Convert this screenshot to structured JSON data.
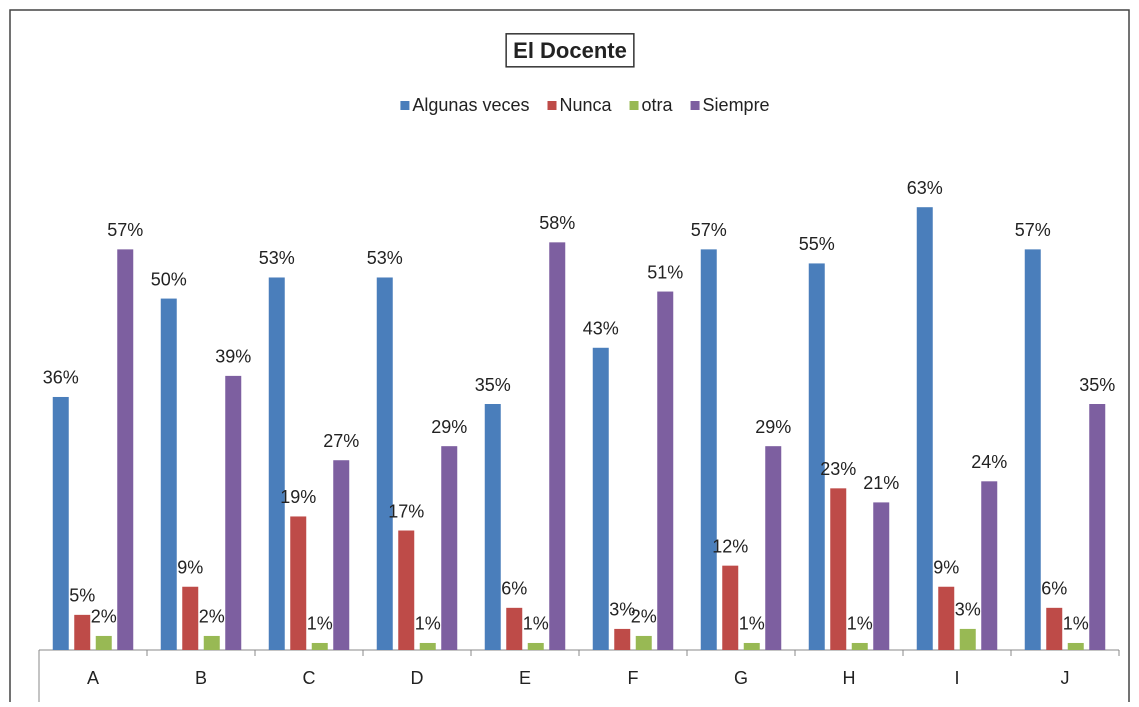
{
  "chart_data": {
    "type": "bar",
    "title": "El Docente",
    "categories": [
      "A",
      "B",
      "C",
      "D",
      "E",
      "F",
      "G",
      "H",
      "I",
      "J"
    ],
    "ylim": [
      0,
      70
    ],
    "legend": "top",
    "series": [
      {
        "name": "Algunas veces",
        "color": "#4a7ebb",
        "values": [
          36,
          50,
          53,
          53,
          35,
          43,
          57,
          55,
          63,
          57
        ],
        "value_labels": [
          "36%",
          "50%",
          "53%",
          "53%",
          "35%",
          "43%",
          "57%",
          "55%",
          "63%",
          "57%"
        ]
      },
      {
        "name": "Nunca",
        "color": "#be4b48",
        "values": [
          5,
          9,
          19,
          17,
          6,
          3,
          12,
          23,
          9,
          6
        ],
        "value_labels": [
          "5%",
          "9%",
          "19%",
          "17%",
          "6%",
          "3%",
          "12%",
          "23%",
          "9%",
          "6%"
        ]
      },
      {
        "name": "otra",
        "color": "#98b954",
        "values": [
          2,
          2,
          1,
          1,
          1,
          2,
          1,
          1,
          3,
          1
        ],
        "value_labels": [
          "2%",
          "2%",
          "1%",
          "1%",
          "1%",
          "2%",
          "1%",
          "1%",
          "3%",
          "1%"
        ]
      },
      {
        "name": "Siempre",
        "color": "#7d5fa0",
        "values": [
          57,
          39,
          27,
          29,
          58,
          51,
          29,
          21,
          24,
          35
        ],
        "value_labels": [
          "57%",
          "39%",
          "27%",
          "29%",
          "58%",
          "51%",
          "29%",
          "21%",
          "24%",
          "35%"
        ]
      }
    ]
  }
}
